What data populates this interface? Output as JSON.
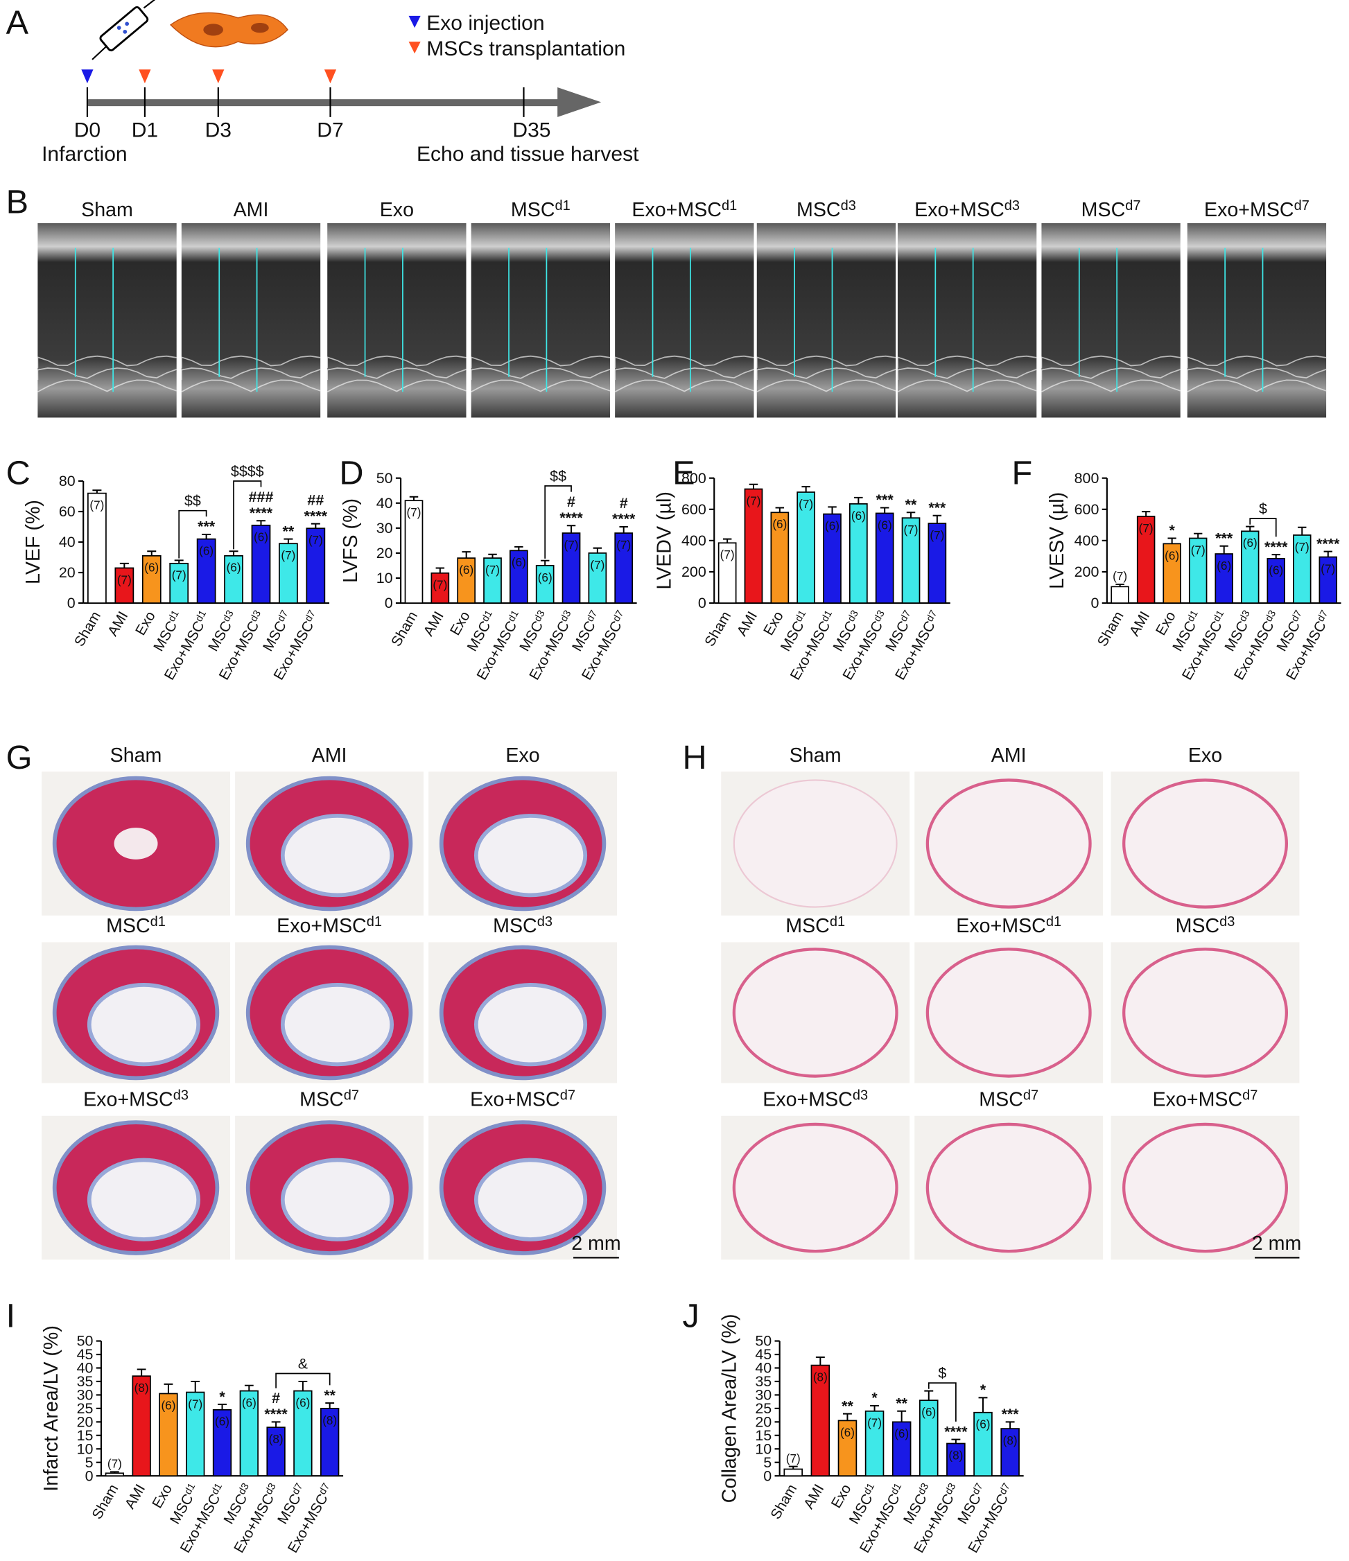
{
  "panel_letters": [
    "A",
    "B",
    "C",
    "D",
    "E",
    "F",
    "G",
    "H",
    "I",
    "J"
  ],
  "timeline": {
    "legend": [
      "Exo injection",
      "MSCs transplantation"
    ],
    "days": [
      "D0",
      "D1",
      "D3",
      "D7",
      "D35"
    ],
    "notes": [
      "Infarction",
      "Echo and tissue harvest"
    ]
  },
  "echo_labels": [
    "Sham",
    "AMI",
    "Exo",
    "MSCd1",
    "Exo+MSCd1",
    "MSCd3",
    "Exo+MSCd3",
    "MSCd7",
    "Exo+MSCd7"
  ],
  "trichrome_labels": [
    "Sham",
    "AMI",
    "Exo",
    "MSCd1",
    "Exo+MSCd1",
    "MSCd3",
    "Exo+MSCd3",
    "MSCd7",
    "Exo+MSCd7"
  ],
  "picrosirius_labels": [
    "Sham",
    "AMI",
    "Exo",
    "MSCd1",
    "Exo+MSCd1",
    "MSCd3",
    "Exo+MSCd3",
    "MSCd7",
    "Exo+MSCd7"
  ],
  "scale_bar": "2 mm",
  "chart_data": [
    {
      "type": "bar",
      "ylabel": "LVEF (%)",
      "categories": [
        "Sham",
        "AMI",
        "Exo",
        "MSCd1",
        "Exo+MSCd1",
        "MSCd3",
        "Exo+MSCd3",
        "MSCd7",
        "Exo+MSCd7"
      ],
      "values": [
        72,
        23,
        31,
        26,
        42,
        31,
        51,
        39,
        49
      ],
      "errors": [
        2,
        3,
        3,
        2,
        3,
        3,
        3,
        3,
        3
      ],
      "colors": [
        "#ffffff",
        "#e8161b",
        "#f7941d",
        "#3ee8e8",
        "#1a1ae6",
        "#3ee8e8",
        "#1a1ae6",
        "#3ee8e8",
        "#1a1ae6"
      ],
      "n_labels": [
        "(7)",
        "(7)",
        "(6)",
        "(7)",
        "(6)",
        "(6)",
        "(6)",
        "(7)",
        "(7)"
      ],
      "significance": [
        null,
        null,
        null,
        null,
        [
          "***"
        ],
        null,
        [
          "###",
          "****"
        ],
        [
          "**"
        ],
        [
          "##",
          "****"
        ]
      ],
      "brackets": [
        {
          "from": 3,
          "to": 4,
          "label": "$$"
        },
        {
          "from": 5,
          "to": 6,
          "label": "$$$$"
        }
      ],
      "ylim": [
        0,
        80
      ],
      "yticks": [
        0,
        20,
        40,
        60,
        80
      ]
    },
    {
      "type": "bar",
      "ylabel": "LVFS (%)",
      "categories": [
        "Sham",
        "AMI",
        "Exo",
        "MSCd1",
        "Exo+MSCd1",
        "MSCd3",
        "Exo+MSCd3",
        "MSCd7",
        "Exo+MSCd7"
      ],
      "values": [
        41,
        12,
        18,
        18,
        21,
        15,
        28,
        20,
        28
      ],
      "errors": [
        1.5,
        2,
        2.5,
        1.5,
        1.5,
        2,
        3,
        2,
        2.5
      ],
      "colors": [
        "#ffffff",
        "#e8161b",
        "#f7941d",
        "#3ee8e8",
        "#1a1ae6",
        "#3ee8e8",
        "#1a1ae6",
        "#3ee8e8",
        "#1a1ae6"
      ],
      "n_labels": [
        "(7)",
        "(7)",
        "(6)",
        "(7)",
        "(6)",
        "(6)",
        "(7)",
        "(7)",
        "(7)"
      ],
      "significance": [
        null,
        null,
        null,
        null,
        null,
        null,
        [
          "#",
          "****"
        ],
        null,
        [
          "#",
          "****"
        ]
      ],
      "brackets": [
        {
          "from": 5,
          "to": 6,
          "label": "$$"
        }
      ],
      "ylim": [
        0,
        50
      ],
      "yticks": [
        0,
        10,
        20,
        30,
        40,
        50
      ]
    },
    {
      "type": "bar",
      "ylabel": "LVEDV (µl)",
      "categories": [
        "Sham",
        "AMI",
        "Exo",
        "MSCd1",
        "Exo+MSCd1",
        "MSCd3",
        "Exo+MSCd3",
        "MSCd7",
        "Exo+MSCd7"
      ],
      "values": [
        385,
        730,
        580,
        710,
        570,
        635,
        575,
        545,
        510
      ],
      "errors": [
        25,
        30,
        30,
        35,
        45,
        40,
        35,
        35,
        50
      ],
      "colors": [
        "#ffffff",
        "#e8161b",
        "#f7941d",
        "#3ee8e8",
        "#1a1ae6",
        "#3ee8e8",
        "#1a1ae6",
        "#3ee8e8",
        "#1a1ae6"
      ],
      "n_labels": [
        "(7)",
        "(7)",
        "(6)",
        "(7)",
        "(6)",
        "(6)",
        "(6)",
        "(7)",
        "(7)"
      ],
      "significance": [
        null,
        null,
        null,
        null,
        null,
        null,
        [
          "***"
        ],
        [
          "**"
        ],
        [
          "***"
        ]
      ],
      "brackets": [],
      "ylim": [
        0,
        800
      ],
      "yticks": [
        0,
        200,
        400,
        600,
        800
      ]
    },
    {
      "type": "bar",
      "ylabel": "LVESV (µl)",
      "categories": [
        "Sham",
        "AMI",
        "Exo",
        "MSCd1",
        "Exo+MSCd1",
        "MSCd3",
        "Exo+MSCd3",
        "MSCd7",
        "Exo+MSCd7"
      ],
      "values": [
        105,
        555,
        380,
        415,
        315,
        460,
        285,
        435,
        295
      ],
      "errors": [
        15,
        30,
        35,
        30,
        50,
        30,
        25,
        50,
        35
      ],
      "colors": [
        "#ffffff",
        "#e8161b",
        "#f7941d",
        "#3ee8e8",
        "#1a1ae6",
        "#3ee8e8",
        "#1a1ae6",
        "#3ee8e8",
        "#1a1ae6"
      ],
      "n_labels": [
        "(7)",
        "(7)",
        "(6)",
        "(7)",
        "(6)",
        "(6)",
        "(6)",
        "(7)",
        "(7)"
      ],
      "significance": [
        null,
        null,
        [
          "*"
        ],
        null,
        [
          "***"
        ],
        null,
        [
          "****"
        ],
        null,
        [
          "****"
        ]
      ],
      "brackets": [
        {
          "from": 5,
          "to": 6,
          "label": "$"
        }
      ],
      "ylim": [
        0,
        800
      ],
      "yticks": [
        0,
        200,
        400,
        600,
        800
      ]
    },
    {
      "type": "bar",
      "ylabel": "Infarct Area/LV (%)",
      "categories": [
        "Sham",
        "AMI",
        "Exo",
        "MSCd1",
        "Exo+MSCd1",
        "MSCd3",
        "Exo+MSCd3",
        "MSCd7",
        "Exo+MSCd7"
      ],
      "values": [
        1,
        37,
        30.5,
        31,
        24.5,
        31.5,
        18,
        31.5,
        25
      ],
      "errors": [
        0.5,
        2.5,
        3.5,
        4,
        2,
        2,
        2,
        3.5,
        2
      ],
      "colors": [
        "#ffffff",
        "#e8161b",
        "#f7941d",
        "#3ee8e8",
        "#1a1ae6",
        "#3ee8e8",
        "#1a1ae6",
        "#3ee8e8",
        "#1a1ae6"
      ],
      "n_labels": [
        "(7)",
        "(8)",
        "(6)",
        "(7)",
        "(6)",
        "(6)",
        "(8)",
        "(6)",
        "(8)"
      ],
      "significance": [
        null,
        null,
        null,
        null,
        [
          "*"
        ],
        null,
        [
          "#",
          "****"
        ],
        null,
        [
          "**"
        ]
      ],
      "brackets": [
        {
          "from": 6,
          "to": 8,
          "label": "&"
        }
      ],
      "ylim": [
        0,
        50
      ],
      "yticks": [
        0,
        5,
        10,
        15,
        20,
        25,
        30,
        35,
        40,
        45,
        50
      ]
    },
    {
      "type": "bar",
      "ylabel": "Collagen Area/LV (%)",
      "categories": [
        "Sham",
        "AMI",
        "Exo",
        "MSCd1",
        "Exo+MSCd1",
        "MSCd3",
        "Exo+MSCd3",
        "MSCd7",
        "Exo+MSCd7"
      ],
      "values": [
        2.5,
        41,
        20.5,
        24,
        20,
        28,
        12,
        23.5,
        17.5
      ],
      "errors": [
        1,
        3,
        2.5,
        2,
        4,
        3.5,
        1.5,
        5.5,
        2.5
      ],
      "colors": [
        "#ffffff",
        "#e8161b",
        "#f7941d",
        "#3ee8e8",
        "#1a1ae6",
        "#3ee8e8",
        "#1a1ae6",
        "#3ee8e8",
        "#1a1ae6"
      ],
      "n_labels": [
        "(7)",
        "(8)",
        "(6)",
        "(7)",
        "(6)",
        "(6)",
        "(8)",
        "(6)",
        "(8)"
      ],
      "significance": [
        null,
        null,
        [
          "**"
        ],
        [
          "*"
        ],
        [
          "**"
        ],
        null,
        [
          "****"
        ],
        [
          "*"
        ],
        [
          "***"
        ]
      ],
      "brackets": [
        {
          "from": 5,
          "to": 6,
          "label": "$"
        }
      ],
      "ylim": [
        0,
        50
      ],
      "yticks": [
        0,
        5,
        10,
        15,
        20,
        25,
        30,
        35,
        40,
        45,
        50
      ]
    }
  ]
}
